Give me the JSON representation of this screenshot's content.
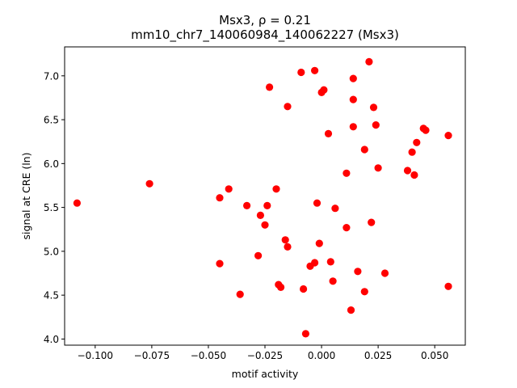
{
  "chart_data": {
    "type": "scatter",
    "title_line1": "Msx3, ρ = 0.21",
    "title_line2": "mm10_chr7_140060984_140062227 (Msx3)",
    "xlabel": "motif activity",
    "ylabel": "signal at CRE (ln)",
    "xlim": [
      -0.1135,
      0.0635
    ],
    "ylim": [
      3.93,
      7.33
    ],
    "x_ticks": [
      -0.1,
      -0.075,
      -0.05,
      -0.025,
      0.0,
      0.025,
      0.05
    ],
    "x_tick_labels": [
      "−0.100",
      "−0.075",
      "−0.050",
      "−0.025",
      "0.000",
      "0.025",
      "0.050"
    ],
    "y_ticks": [
      4.0,
      4.5,
      5.0,
      5.5,
      6.0,
      6.5,
      7.0
    ],
    "y_tick_labels": [
      "4.0",
      "4.5",
      "5.0",
      "5.5",
      "6.0",
      "6.5",
      "7.0"
    ],
    "grid": false,
    "marker_color": "#ff0000",
    "points": [
      {
        "x": -0.108,
        "y": 5.55
      },
      {
        "x": -0.076,
        "y": 5.77
      },
      {
        "x": -0.045,
        "y": 5.61
      },
      {
        "x": -0.045,
        "y": 4.86
      },
      {
        "x": -0.041,
        "y": 5.71
      },
      {
        "x": -0.036,
        "y": 4.51
      },
      {
        "x": -0.033,
        "y": 5.52
      },
      {
        "x": -0.028,
        "y": 4.95
      },
      {
        "x": -0.027,
        "y": 5.41
      },
      {
        "x": -0.025,
        "y": 5.3
      },
      {
        "x": -0.024,
        "y": 5.52
      },
      {
        "x": -0.023,
        "y": 6.87
      },
      {
        "x": -0.02,
        "y": 5.71
      },
      {
        "x": -0.019,
        "y": 4.62
      },
      {
        "x": -0.018,
        "y": 4.59
      },
      {
        "x": -0.016,
        "y": 5.13
      },
      {
        "x": -0.015,
        "y": 6.65
      },
      {
        "x": -0.015,
        "y": 5.05
      },
      {
        "x": -0.009,
        "y": 7.04
      },
      {
        "x": -0.008,
        "y": 4.57
      },
      {
        "x": -0.007,
        "y": 4.06
      },
      {
        "x": -0.005,
        "y": 4.83
      },
      {
        "x": -0.003,
        "y": 7.06
      },
      {
        "x": -0.003,
        "y": 4.87
      },
      {
        "x": -0.002,
        "y": 5.55
      },
      {
        "x": -0.001,
        "y": 5.09
      },
      {
        "x": 0.0,
        "y": 6.81
      },
      {
        "x": 0.001,
        "y": 6.84
      },
      {
        "x": 0.003,
        "y": 6.34
      },
      {
        "x": 0.004,
        "y": 4.88
      },
      {
        "x": 0.005,
        "y": 4.66
      },
      {
        "x": 0.006,
        "y": 5.49
      },
      {
        "x": 0.011,
        "y": 5.89
      },
      {
        "x": 0.011,
        "y": 5.27
      },
      {
        "x": 0.013,
        "y": 4.33
      },
      {
        "x": 0.014,
        "y": 6.97
      },
      {
        "x": 0.014,
        "y": 6.73
      },
      {
        "x": 0.014,
        "y": 6.42
      },
      {
        "x": 0.016,
        "y": 4.77
      },
      {
        "x": 0.019,
        "y": 6.16
      },
      {
        "x": 0.019,
        "y": 4.54
      },
      {
        "x": 0.021,
        "y": 7.16
      },
      {
        "x": 0.022,
        "y": 5.33
      },
      {
        "x": 0.023,
        "y": 6.64
      },
      {
        "x": 0.024,
        "y": 6.44
      },
      {
        "x": 0.025,
        "y": 5.95
      },
      {
        "x": 0.028,
        "y": 4.75
      },
      {
        "x": 0.038,
        "y": 5.92
      },
      {
        "x": 0.04,
        "y": 6.13
      },
      {
        "x": 0.041,
        "y": 5.87
      },
      {
        "x": 0.042,
        "y": 6.24
      },
      {
        "x": 0.045,
        "y": 6.4
      },
      {
        "x": 0.046,
        "y": 6.38
      },
      {
        "x": 0.056,
        "y": 6.32
      },
      {
        "x": 0.056,
        "y": 4.6
      }
    ]
  }
}
